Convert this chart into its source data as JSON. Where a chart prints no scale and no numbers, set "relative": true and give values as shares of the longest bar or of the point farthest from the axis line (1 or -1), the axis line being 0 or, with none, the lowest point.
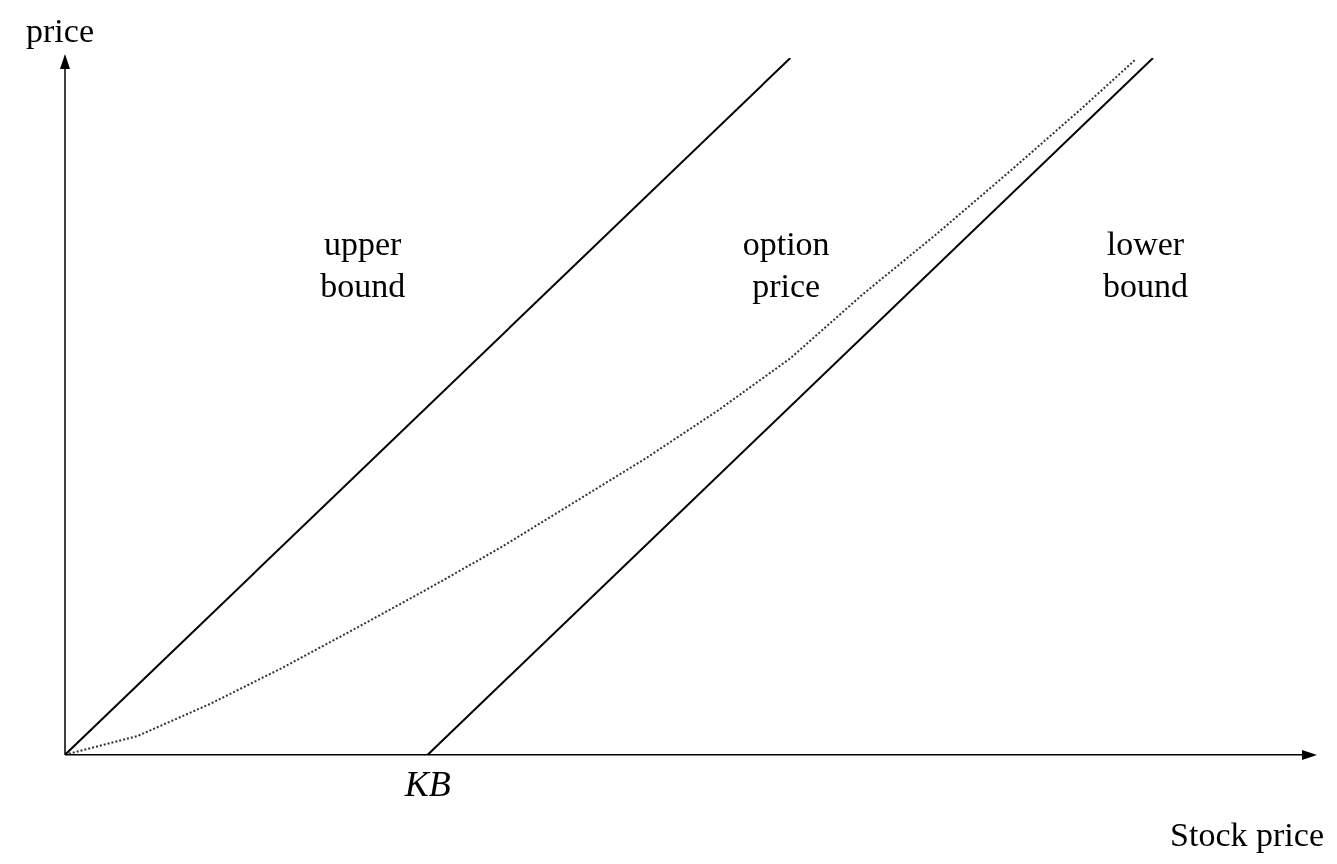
{
  "chart_data": {
    "type": "line",
    "relative": true,
    "xlabel": "Stock price",
    "ylabel": "price",
    "annotations": [
      "KB"
    ],
    "categories": [
      null,
      null,
      null,
      null,
      null,
      null,
      null,
      null,
      null,
      null,
      null,
      null,
      null,
      null,
      null,
      null,
      null,
      null,
      null,
      null,
      null,
      null,
      null,
      null,
      null,
      null,
      null,
      null,
      null,
      null,
      null,
      null,
      null,
      null,
      null,
      null,
      null,
      null,
      null,
      null,
      null,
      null,
      null,
      null,
      null,
      null,
      null,
      null,
      null,
      null,
      null,
      null,
      null,
      null,
      null,
      null,
      null,
      null,
      null,
      null,
      null
    ],
    "series": [
      {
        "name": "upper bound",
        "color": "#000000",
        "line_style": "solid",
        "values": [
          0,
          null,
          null,
          null,
          null,
          null,
          null,
          null,
          null,
          null,
          null,
          null,
          null,
          null,
          null,
          null,
          null,
          null,
          null,
          null,
          null,
          null,
          null,
          null,
          null,
          null,
          null,
          null,
          null,
          null,
          null,
          null,
          null,
          null,
          null,
          null,
          null,
          null,
          null,
          null,
          1,
          null,
          null,
          null,
          null,
          null,
          null,
          null,
          null,
          null,
          null,
          null,
          null,
          null,
          null,
          null,
          null,
          null,
          null,
          null,
          null
        ]
      },
      {
        "name": "option price",
        "color": "#333333",
        "line_style": "dotted",
        "values": [
          0,
          null,
          null,
          null,
          0.027,
          null,
          null,
          null,
          0.073,
          null,
          null,
          null,
          0.125,
          null,
          null,
          null,
          0.181,
          null,
          null,
          null,
          0.238,
          null,
          null,
          null,
          0.297,
          null,
          null,
          null,
          0.361,
          null,
          null,
          null,
          0.425,
          null,
          null,
          null,
          0.494,
          null,
          null,
          null,
          0.569,
          null,
          null,
          null,
          0.661,
          null,
          null,
          null,
          0.746,
          null,
          null,
          null,
          0.835,
          null,
          null,
          null,
          0.926,
          null,
          null,
          0.997,
          null
        ]
      },
      {
        "name": "lower bound",
        "color": "#000000",
        "line_style": "solid",
        "values": [
          null,
          null,
          null,
          null,
          null,
          null,
          null,
          null,
          null,
          null,
          null,
          null,
          null,
          null,
          null,
          null,
          null,
          null,
          null,
          null,
          0,
          null,
          null,
          null,
          null,
          null,
          null,
          null,
          null,
          null,
          null,
          null,
          null,
          null,
          null,
          null,
          null,
          null,
          null,
          null,
          null,
          null,
          null,
          null,
          null,
          null,
          null,
          null,
          null,
          null,
          null,
          null,
          null,
          null,
          null,
          null,
          null,
          null,
          null,
          null,
          1
        ]
      }
    ]
  }
}
